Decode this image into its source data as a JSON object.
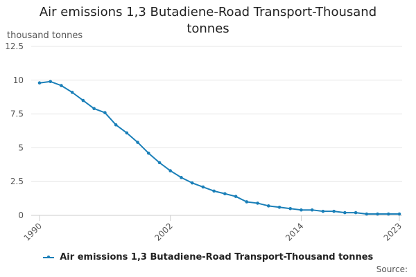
{
  "chart_data": {
    "type": "line",
    "title": "Air emissions 1,3 Butadiene-Road Transport-Thousand tonnes",
    "ylabel": "thousand tonnes",
    "xlabel": "",
    "x": [
      1990,
      1991,
      1992,
      1993,
      1994,
      1995,
      1996,
      1997,
      1998,
      1999,
      2000,
      2001,
      2002,
      2003,
      2004,
      2005,
      2006,
      2007,
      2008,
      2009,
      2010,
      2011,
      2012,
      2013,
      2014,
      2015,
      2016,
      2017,
      2018,
      2019,
      2020,
      2021,
      2022,
      2023
    ],
    "x_tick_labels": [
      "1990",
      "2002",
      "2014",
      "2023"
    ],
    "x_ticks": [
      1990,
      2002,
      2014,
      2023
    ],
    "y_ticks": [
      0,
      2.5,
      5,
      7.5,
      10,
      12.5
    ],
    "y_tick_labels": [
      "0",
      "2.5",
      "5",
      "7.5",
      "10",
      "12.5"
    ],
    "ylim": [
      0,
      12.5
    ],
    "grid": true,
    "legend_position": "bottom",
    "series": [
      {
        "name": "Air emissions 1,3 Butadiene-Road Transport-Thousand tonnes",
        "color": "#1a7fb8",
        "values": [
          9.8,
          9.9,
          9.6,
          9.1,
          8.5,
          7.9,
          7.6,
          6.7,
          6.1,
          5.4,
          4.6,
          3.9,
          3.3,
          2.8,
          2.4,
          2.1,
          1.8,
          1.6,
          1.4,
          1.0,
          0.9,
          0.7,
          0.6,
          0.5,
          0.4,
          0.4,
          0.3,
          0.3,
          0.2,
          0.2,
          0.1,
          0.1,
          0.1,
          0.1
        ]
      }
    ]
  },
  "source_label": "Source:"
}
